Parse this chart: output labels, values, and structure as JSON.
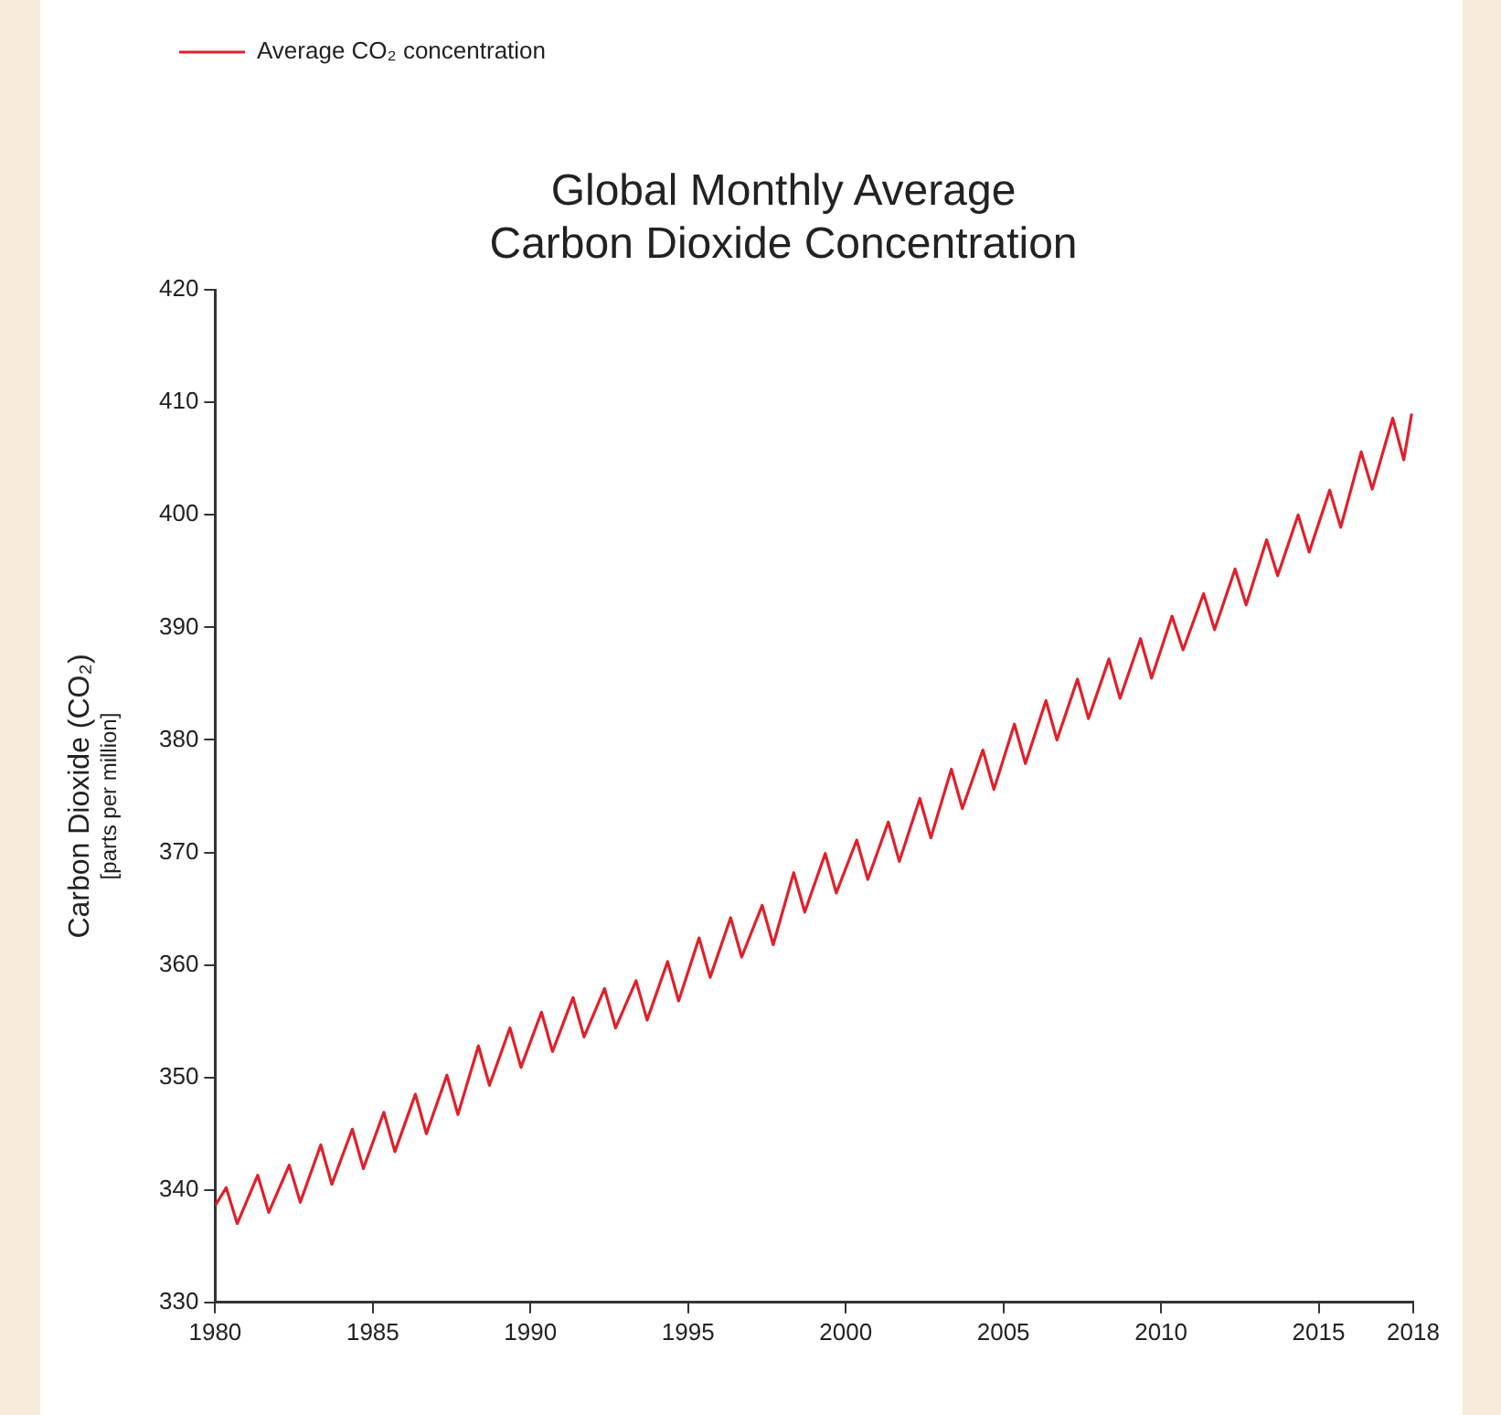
{
  "chart_data": {
    "type": "line",
    "title": [
      "Global Monthly Average",
      "Carbon Dioxide Concentration"
    ],
    "ylabel": "Carbon Dioxide (CO₂)",
    "subtitle": "[parts per million]",
    "series": [
      {
        "name": "Average CO₂ concentration",
        "color": "#e0202a",
        "x": [
          1980.0,
          1980.35,
          1980.7,
          1981.35,
          1981.7,
          1982.35,
          1982.7,
          1983.35,
          1983.7,
          1984.35,
          1984.7,
          1985.35,
          1985.7,
          1986.35,
          1986.7,
          1987.35,
          1987.7,
          1988.35,
          1988.7,
          1989.35,
          1989.7,
          1990.35,
          1990.7,
          1991.35,
          1991.7,
          1992.35,
          1992.7,
          1993.35,
          1993.7,
          1994.35,
          1994.7,
          1995.35,
          1995.7,
          1996.35,
          1996.7,
          1997.35,
          1997.7,
          1998.35,
          1998.7,
          1999.35,
          1999.7,
          2000.35,
          2000.7,
          2001.35,
          2001.7,
          2002.35,
          2002.7,
          2003.35,
          2003.7,
          2004.35,
          2004.7,
          2005.35,
          2005.7,
          2006.35,
          2006.7,
          2007.35,
          2007.7,
          2008.35,
          2008.7,
          2009.35,
          2009.7,
          2010.35,
          2010.7,
          2011.35,
          2011.7,
          2012.35,
          2012.7,
          2013.35,
          2013.7,
          2014.35,
          2014.7,
          2015.35,
          2015.7,
          2016.35,
          2016.7,
          2017.35,
          2017.7,
          2017.95
        ],
        "values": [
          338.6,
          340.2,
          337.0,
          341.3,
          338.0,
          342.2,
          338.9,
          344.0,
          340.5,
          345.4,
          341.9,
          346.9,
          343.4,
          348.5,
          345.0,
          350.2,
          346.7,
          352.8,
          349.3,
          354.4,
          350.9,
          355.8,
          352.3,
          357.1,
          353.6,
          357.9,
          354.4,
          358.6,
          355.1,
          360.3,
          356.8,
          362.4,
          358.9,
          364.2,
          360.7,
          365.3,
          361.8,
          368.2,
          364.7,
          369.9,
          366.4,
          371.1,
          367.6,
          372.7,
          369.2,
          374.8,
          371.3,
          377.4,
          373.9,
          379.1,
          375.6,
          381.4,
          377.9,
          383.5,
          380.0,
          385.4,
          381.9,
          387.2,
          383.7,
          389.0,
          385.5,
          391.0,
          388.0,
          393.0,
          389.8,
          395.2,
          392.0,
          397.8,
          394.6,
          400.0,
          396.7,
          402.2,
          398.9,
          405.6,
          402.3,
          408.6,
          404.9,
          409.0
        ]
      }
    ],
    "xlim": [
      1980,
      2018
    ],
    "xticks": [
      1980,
      1985,
      1990,
      1995,
      2000,
      2005,
      2010,
      2015,
      2018
    ],
    "ylim": [
      330,
      420
    ],
    "yticks": [
      330,
      340,
      350,
      360,
      370,
      380,
      390,
      400,
      410,
      420
    ],
    "grid": false,
    "legend": "top left",
    "marker": "none",
    "line_style": "solid"
  }
}
